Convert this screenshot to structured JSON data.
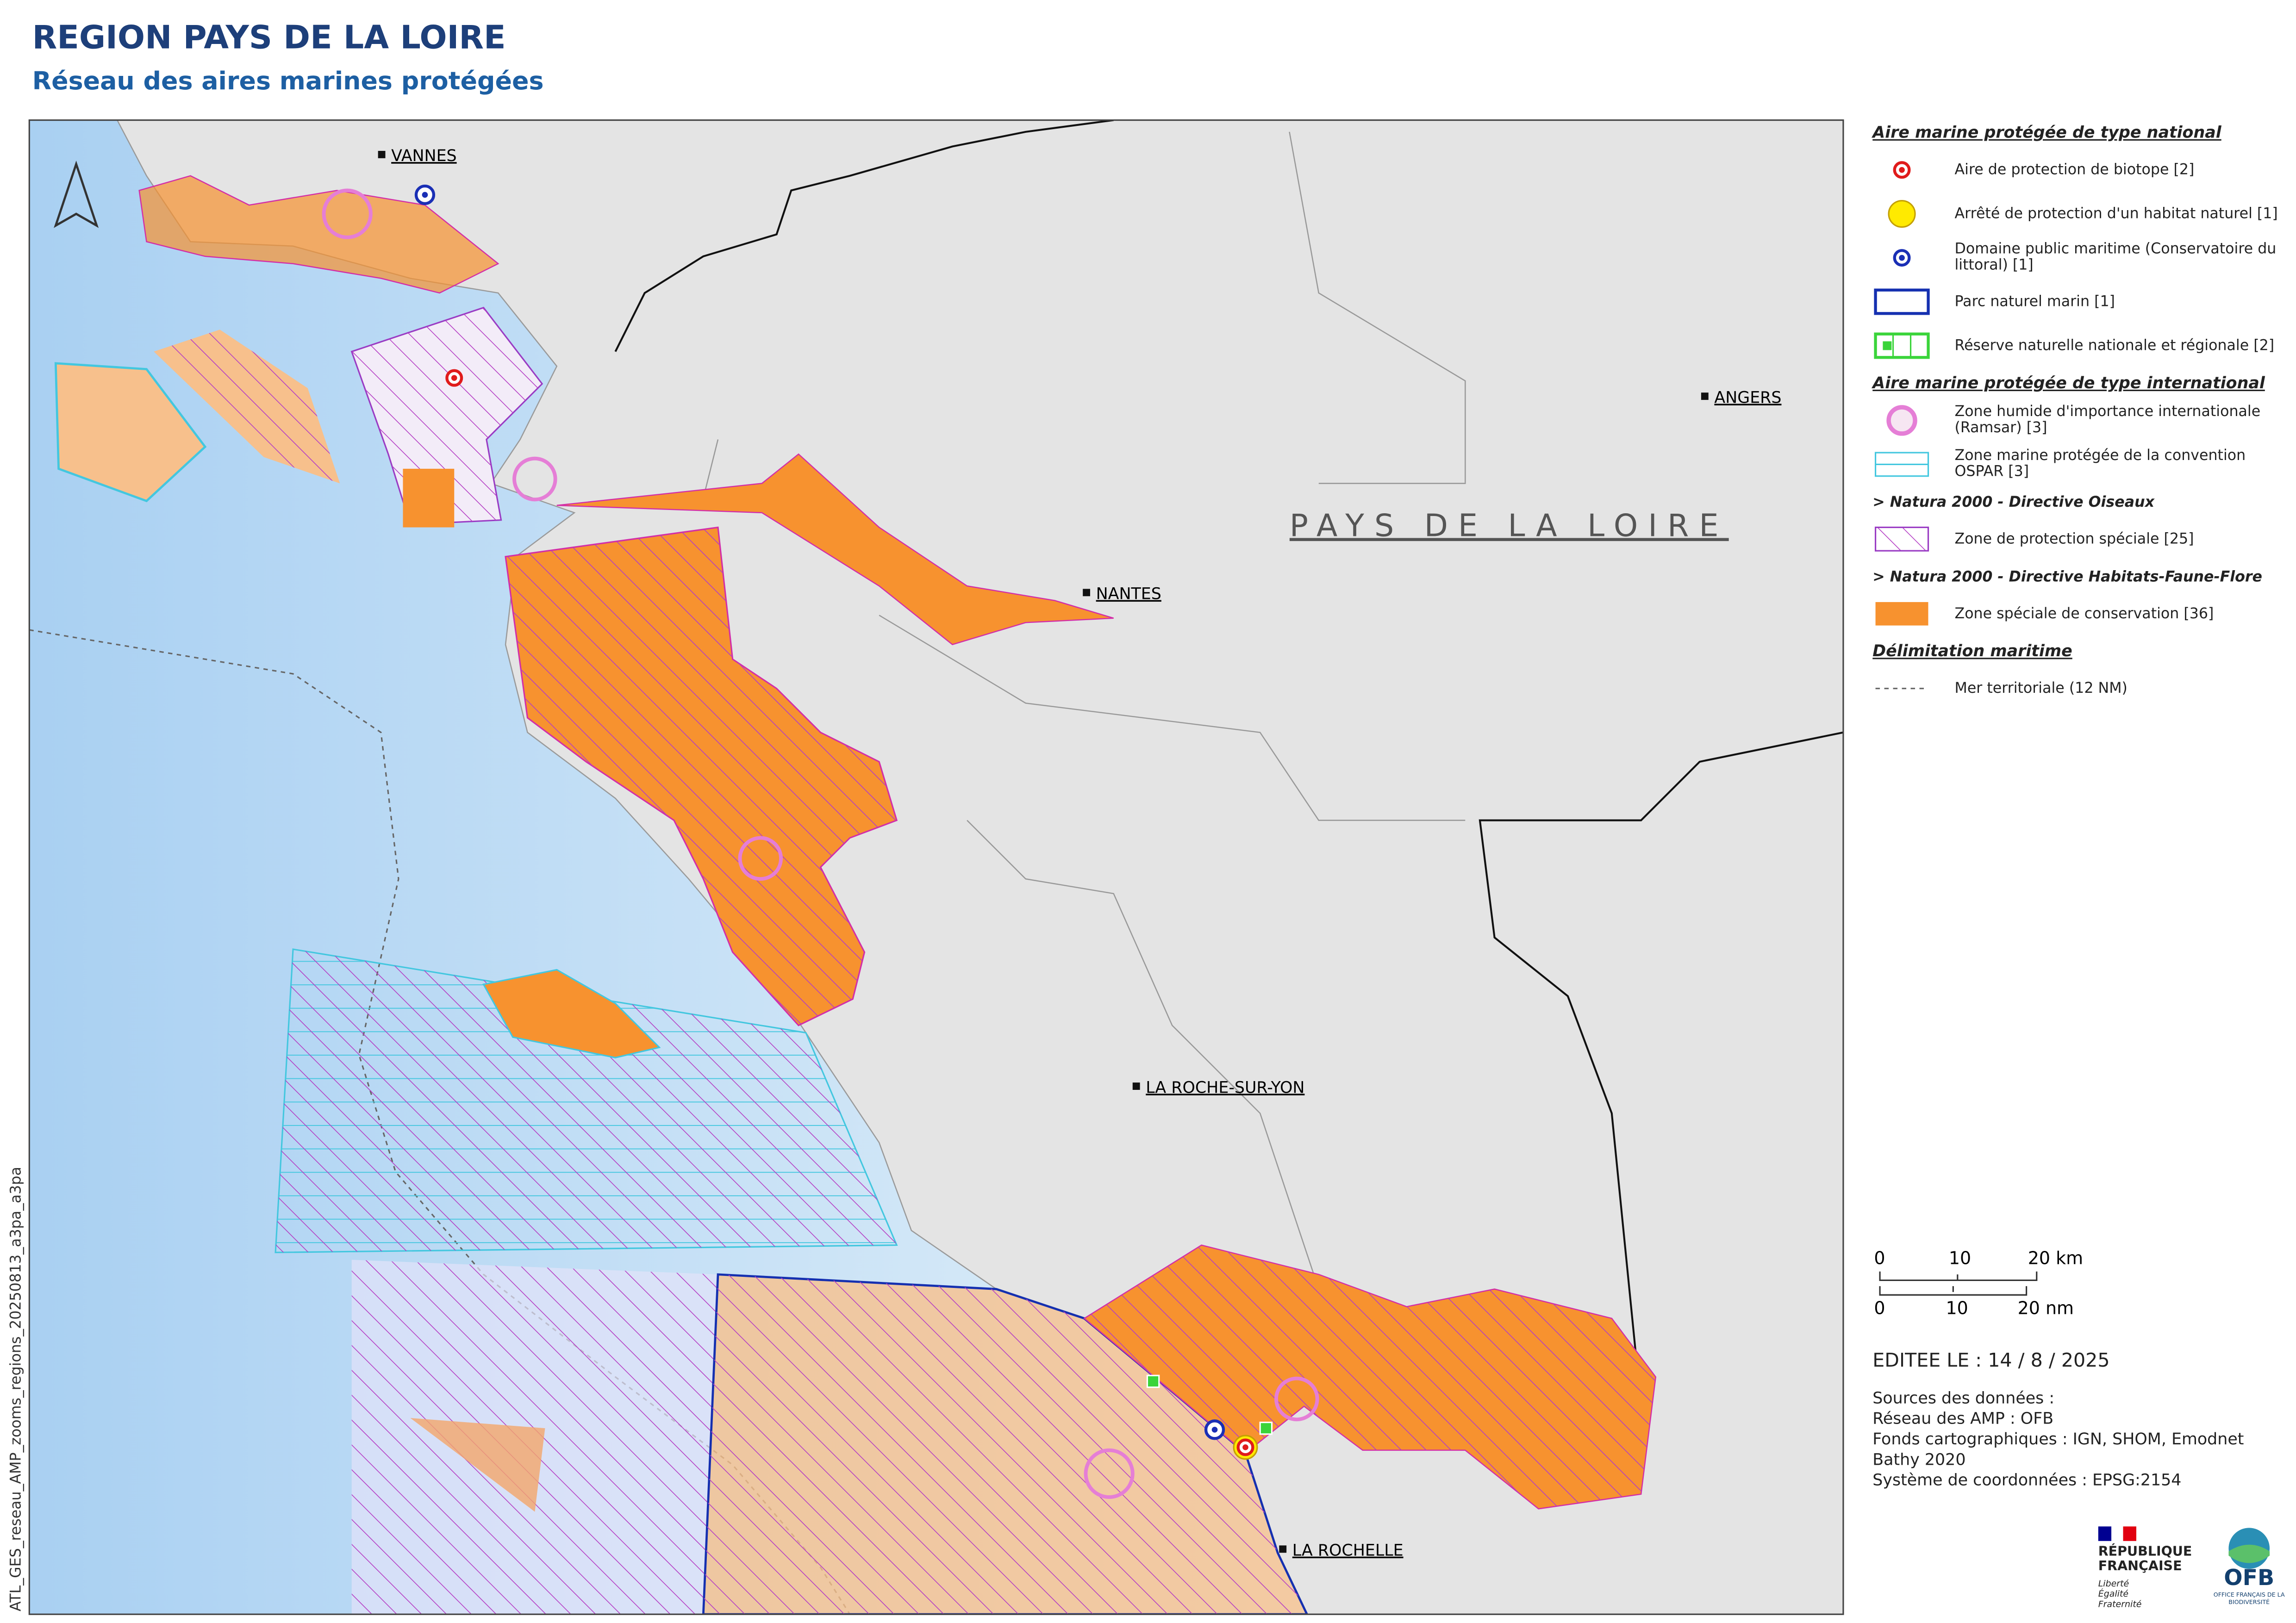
{
  "header": {
    "title": "REGION PAYS DE LA LOIRE",
    "subtitle": "Réseau des aires marines protégées"
  },
  "map": {
    "region_label": "PAYS DE LA LOIRE",
    "cities": [
      "VANNES",
      "ANGERS",
      "NANTES",
      "LA ROCHE-SUR-YON",
      "LA ROCHELLE"
    ],
    "side_note": "ATL_GES_reseau_AMP_zooms_regions_20250813_a3pa_a3pa"
  },
  "legend": {
    "sections": [
      {
        "title": "Aire marine protégée de type national",
        "items": [
          "Aire de protection de biotope [2]",
          "Arrêté de protection d'un habitat naturel [1]",
          "Domaine public maritime (Conservatoire du littoral) [1]",
          "Parc naturel marin [1]",
          "Réserve naturelle nationale et régionale [2]"
        ]
      },
      {
        "title": "Aire marine protégée de type international",
        "items": [
          "Zone humide d'importance internationale (Ramsar) [3]",
          "Zone marine protégée de la convention OSPAR [3]"
        ]
      },
      {
        "title": "> Natura 2000 - Directive Oiseaux",
        "items": [
          "Zone de protection spéciale [25]"
        ]
      },
      {
        "title": "> Natura 2000 - Directive Habitats-Faune-Flore",
        "items": [
          "Zone spéciale de conservation [36]"
        ]
      },
      {
        "title": "Délimitation maritime",
        "items": [
          "Mer territoriale (12 NM)"
        ]
      }
    ]
  },
  "scale_bar": {
    "km": [
      "0",
      "10",
      "20 km"
    ],
    "nm": [
      "0",
      "10",
      "20 nm"
    ]
  },
  "edition": "EDITEE LE : 14 / 8 / 2025",
  "sources": [
    "Sources des données :",
    "Réseau des AMP : OFB",
    "Fonds cartographiques : IGN, SHOM, Emodnet",
    "Bathy 2020",
    "Système de coordonnées : EPSG:2154"
  ],
  "logos": {
    "rf": [
      "RÉPUBLIQUE",
      "FRANÇAISE"
    ],
    "rf_motto": [
      "Liberté",
      "Égalité",
      "Fraternité"
    ],
    "ofb": "OFB",
    "ofb_sub": "OFFICE FRANÇAIS DE LA BIODIVERSITÉ"
  }
}
